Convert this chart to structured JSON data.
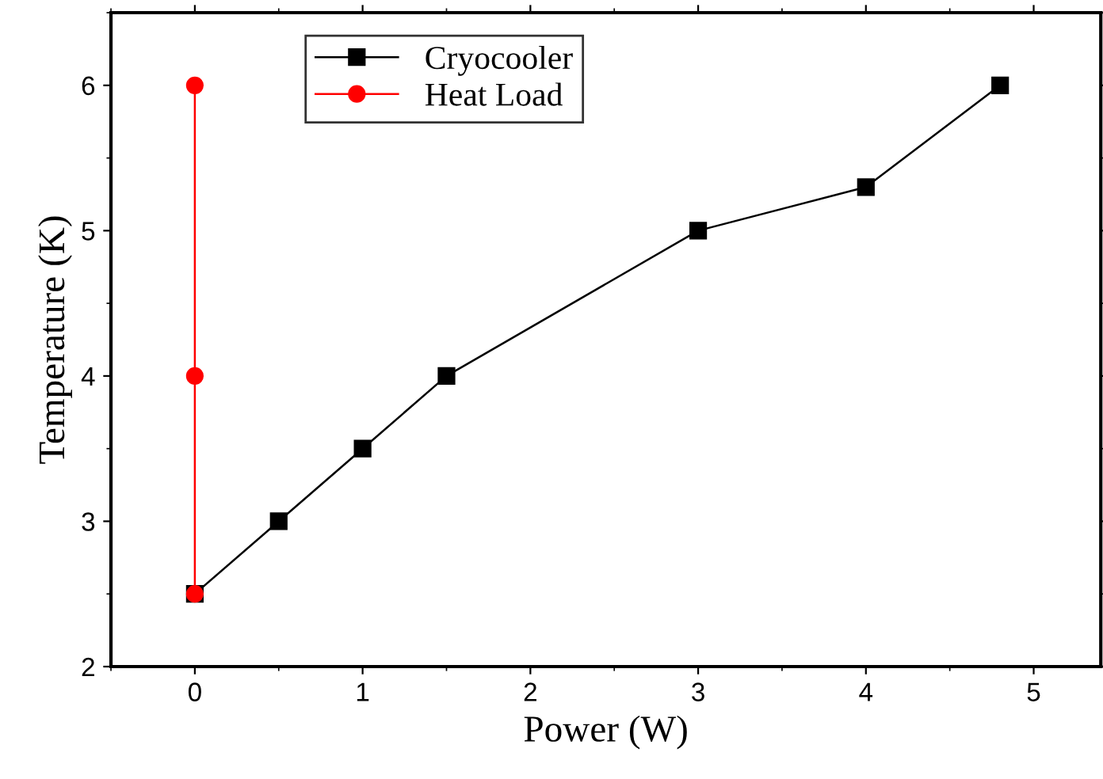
{
  "chart_data": {
    "type": "line",
    "xlabel": "Power (W)",
    "ylabel": "Temperature (K)",
    "xlim": [
      -0.5,
      5.4
    ],
    "xticks": [
      0,
      1,
      2,
      3,
      4,
      5
    ],
    "ylim": [
      2,
      6.5
    ],
    "yticks": [
      2,
      3,
      4,
      5,
      6
    ],
    "grid": false,
    "legend": "top left",
    "line_style": "solid",
    "series": [
      {
        "name": "Cryocooler",
        "color": "#000000",
        "marker": "square",
        "x": [
          0,
          0.5,
          1,
          1.5,
          3,
          4,
          4.8
        ],
        "values": [
          2.5,
          3,
          3.5,
          4,
          5,
          5.3,
          6
        ]
      },
      {
        "name": "Heat Load",
        "color": "#ff0000",
        "marker": "circle",
        "x": [
          0,
          0,
          0
        ],
        "values": [
          2.5,
          4,
          6
        ]
      }
    ]
  }
}
